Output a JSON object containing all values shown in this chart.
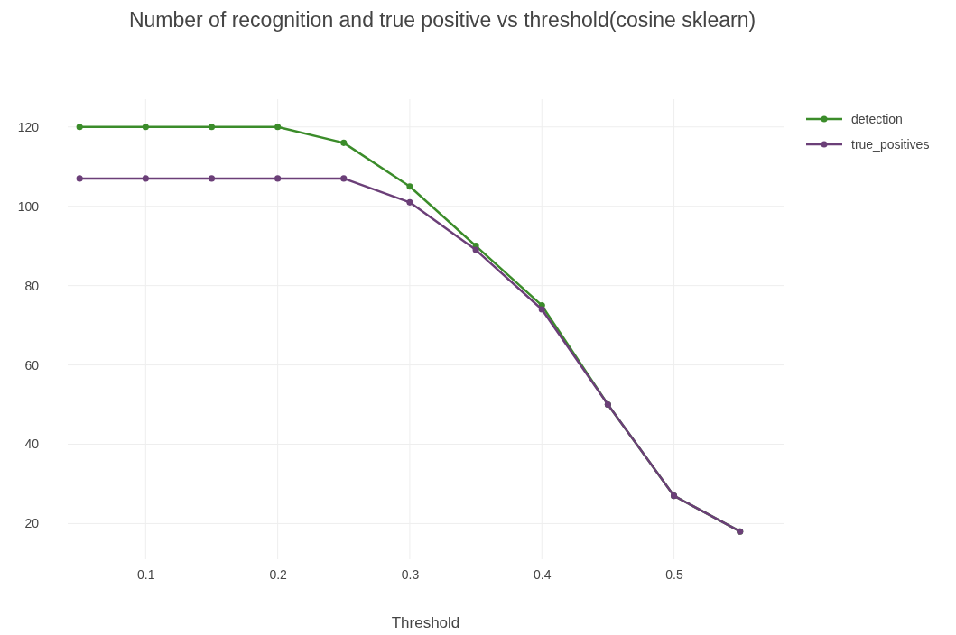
{
  "chart_data": {
    "type": "line",
    "title": "Number of recognition and true positive vs threshold(cosine sklearn)",
    "xlabel": "Threshold",
    "x": [
      0.05,
      0.1,
      0.15,
      0.2,
      0.25,
      0.3,
      0.35,
      0.4,
      0.45,
      0.5,
      0.55
    ],
    "series": [
      {
        "name": "detection",
        "color": "#3b8c2a",
        "values": [
          120,
          120,
          120,
          120,
          116,
          105,
          90,
          75,
          50,
          27,
          18
        ]
      },
      {
        "name": "true_positives",
        "color": "#6b3f78",
        "values": [
          107,
          107,
          107,
          107,
          107,
          101,
          89,
          74,
          50,
          27,
          18
        ]
      }
    ],
    "xlim": [
      0.041,
      0.583
    ],
    "ylim": [
      11,
      127
    ],
    "xticks": [
      0.1,
      0.2,
      0.3,
      0.4,
      0.5
    ],
    "yticks": [
      20,
      40,
      60,
      80,
      100,
      120
    ],
    "grid": true,
    "legend": "top right",
    "marker": "circle",
    "line_style": "solid"
  }
}
